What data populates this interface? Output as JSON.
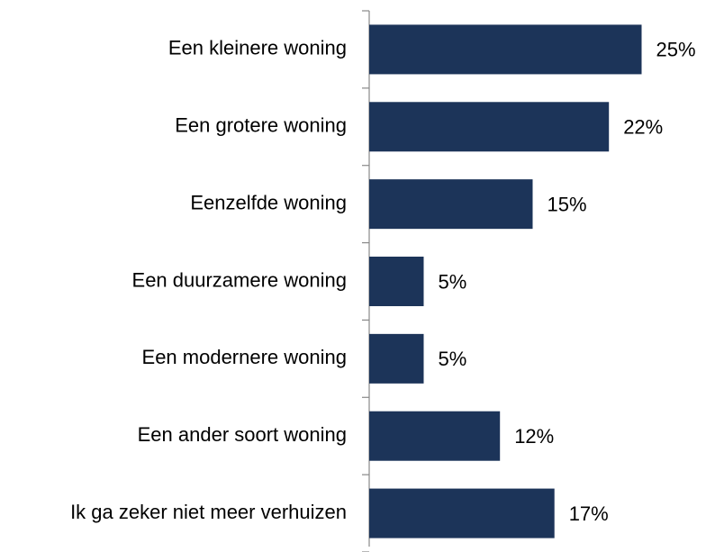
{
  "chart_data": {
    "type": "bar",
    "orientation": "horizontal",
    "categories": [
      "Een kleinere woning",
      "Een grotere woning",
      "Eenzelfde woning",
      "Een duurzamere woning",
      "Een modernere woning",
      "Een ander soort woning",
      "Ik ga zeker niet meer verhuizen"
    ],
    "values": [
      25,
      22,
      15,
      5,
      5,
      12,
      17
    ],
    "value_labels": [
      "25%",
      "22%",
      "15%",
      "5%",
      "5%",
      "12%",
      "17%"
    ],
    "color": "#1c3459"
  }
}
